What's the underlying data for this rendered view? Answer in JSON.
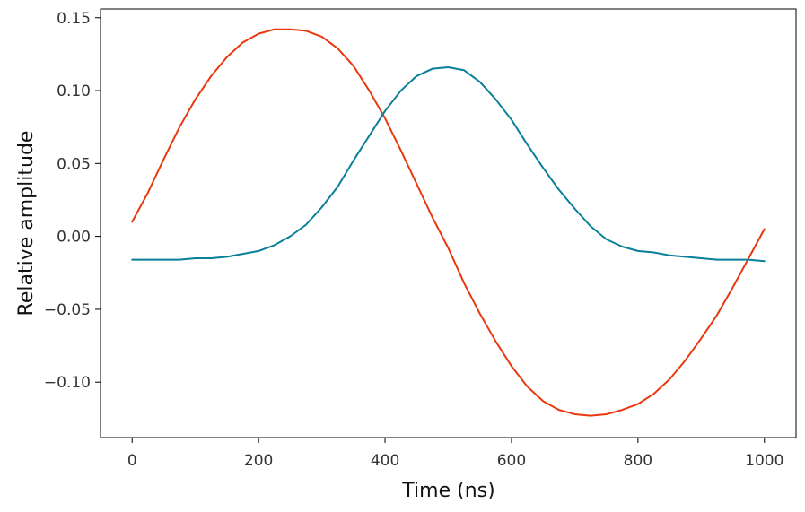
{
  "chart_data": {
    "type": "line",
    "title": "",
    "xlabel": "Time (ns)",
    "ylabel": "Relative amplitude",
    "xlim": [
      -50,
      1050
    ],
    "ylim": [
      -0.138,
      0.156
    ],
    "xticks": [
      0,
      200,
      400,
      600,
      800,
      1000
    ],
    "xtick_labels": [
      "0",
      "200",
      "400",
      "600",
      "800",
      "1000"
    ],
    "yticks": [
      -0.1,
      -0.05,
      0.0,
      0.05,
      0.1,
      0.15
    ],
    "ytick_labels": [
      "−0.10",
      "−0.05",
      "0.00",
      "0.05",
      "0.10",
      "0.15"
    ],
    "grid": false,
    "legend": "none",
    "x": [
      0,
      25,
      50,
      75,
      100,
      125,
      150,
      175,
      200,
      225,
      250,
      275,
      300,
      325,
      350,
      375,
      400,
      425,
      450,
      475,
      500,
      525,
      550,
      575,
      600,
      625,
      650,
      675,
      700,
      725,
      750,
      775,
      800,
      825,
      850,
      875,
      900,
      925,
      950,
      975,
      1000
    ],
    "series": [
      {
        "color": "#e8390e",
        "values": [
          0.01,
          0.03,
          0.053,
          0.075,
          0.094,
          0.11,
          0.123,
          0.133,
          0.139,
          0.142,
          0.142,
          0.141,
          0.137,
          0.129,
          0.117,
          0.1,
          0.081,
          0.059,
          0.036,
          0.013,
          -0.008,
          -0.032,
          -0.053,
          -0.072,
          -0.089,
          -0.103,
          -0.113,
          -0.119,
          -0.122,
          -0.123,
          -0.122,
          -0.119,
          -0.115,
          -0.108,
          -0.098,
          -0.085,
          -0.07,
          -0.054,
          -0.035,
          -0.015,
          0.005
        ]
      },
      {
        "color": "#0a7f98",
        "values": [
          -0.016,
          -0.016,
          -0.016,
          -0.016,
          -0.015,
          -0.015,
          -0.014,
          -0.012,
          -0.01,
          -0.006,
          0.0,
          0.008,
          0.02,
          0.034,
          0.052,
          0.069,
          0.086,
          0.1,
          0.11,
          0.115,
          0.116,
          0.114,
          0.106,
          0.094,
          0.08,
          0.063,
          0.047,
          0.032,
          0.019,
          0.007,
          -0.002,
          -0.007,
          -0.01,
          -0.011,
          -0.013,
          -0.014,
          -0.015,
          -0.016,
          -0.016,
          -0.016,
          -0.017
        ]
      }
    ]
  }
}
